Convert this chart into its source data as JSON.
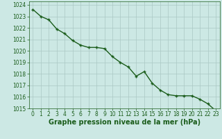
{
  "x": [
    0,
    1,
    2,
    3,
    4,
    5,
    6,
    7,
    8,
    9,
    10,
    11,
    12,
    13,
    14,
    15,
    16,
    17,
    18,
    19,
    20,
    21,
    22,
    23
  ],
  "y": [
    1023.6,
    1023.0,
    1022.7,
    1021.9,
    1021.5,
    1020.9,
    1020.5,
    1020.3,
    1020.3,
    1020.2,
    1019.5,
    1019.0,
    1018.6,
    1017.8,
    1018.2,
    1017.2,
    1016.6,
    1016.2,
    1016.1,
    1016.1,
    1016.1,
    1015.8,
    1015.4,
    1014.8
  ],
  "ylim": [
    1015,
    1024
  ],
  "xlim": [
    -0.5,
    23.5
  ],
  "yticks": [
    1015,
    1016,
    1017,
    1018,
    1019,
    1020,
    1021,
    1022,
    1023,
    1024
  ],
  "xticks": [
    0,
    1,
    2,
    3,
    4,
    5,
    6,
    7,
    8,
    9,
    10,
    11,
    12,
    13,
    14,
    15,
    16,
    17,
    18,
    19,
    20,
    21,
    22,
    23
  ],
  "line_color": "#1a5c1a",
  "marker": "+",
  "marker_size": 3.5,
  "bg_color": "#cce8e4",
  "grid_color": "#aac8c4",
  "xlabel": "Graphe pression niveau de la mer (hPa)",
  "xlabel_color": "#1a5c1a",
  "xlabel_fontsize": 7,
  "tick_fontsize": 5.5,
  "line_width": 1.0,
  "xlabel_bold": true
}
